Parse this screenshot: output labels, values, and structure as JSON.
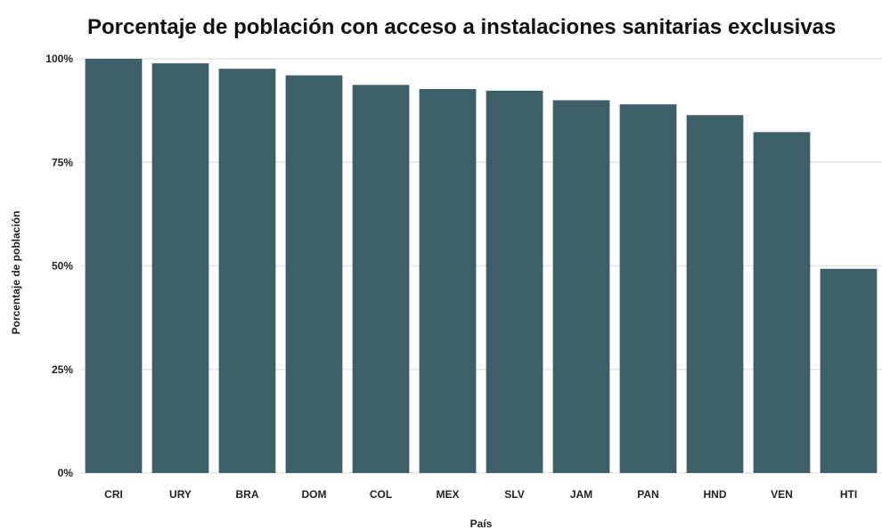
{
  "chart_data": {
    "type": "bar",
    "title": "Porcentaje de población con acceso a instalaciones sanitarias exclusivas",
    "xlabel": "País",
    "ylabel": "Porcentaje de población",
    "categories": [
      "CRI",
      "URY",
      "BRA",
      "DOM",
      "COL",
      "MEX",
      "SLV",
      "JAM",
      "PAN",
      "HND",
      "VEN",
      "HTI"
    ],
    "values": [
      100.0,
      98.9,
      97.6,
      96.0,
      93.7,
      92.7,
      92.3,
      90.0,
      89.0,
      86.4,
      82.3,
      49.3
    ],
    "ylim": [
      0,
      100
    ],
    "yticks": [
      0,
      25,
      50,
      75,
      100
    ],
    "ytick_labels": [
      "0%",
      "25%",
      "50%",
      "75%",
      "100%"
    ],
    "grid": true,
    "legend": "none",
    "colors": {
      "bar": "#3d5f68",
      "grid": "#e6e6e6",
      "background": "#ffffff"
    }
  }
}
